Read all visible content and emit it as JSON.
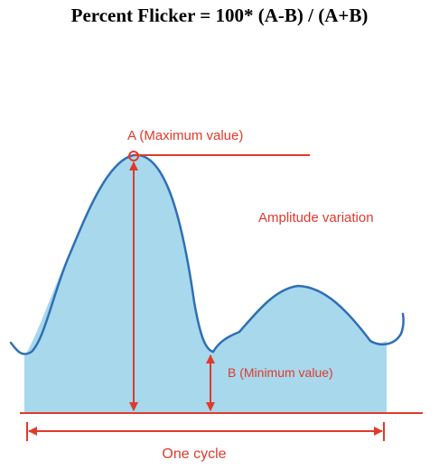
{
  "formula": "Percent Flicker = 100* (A-B) / (A+B)",
  "labels": {
    "max": "A (Maximum value)",
    "amplitude": "Amplitude variation",
    "min": "B (Minimum value)",
    "cycle": "One cycle"
  },
  "colors": {
    "wave_fill": "#a7d8ec",
    "wave_stroke": "#2f6fb5",
    "annotation": "#e03a2c",
    "text": "#000000"
  }
}
